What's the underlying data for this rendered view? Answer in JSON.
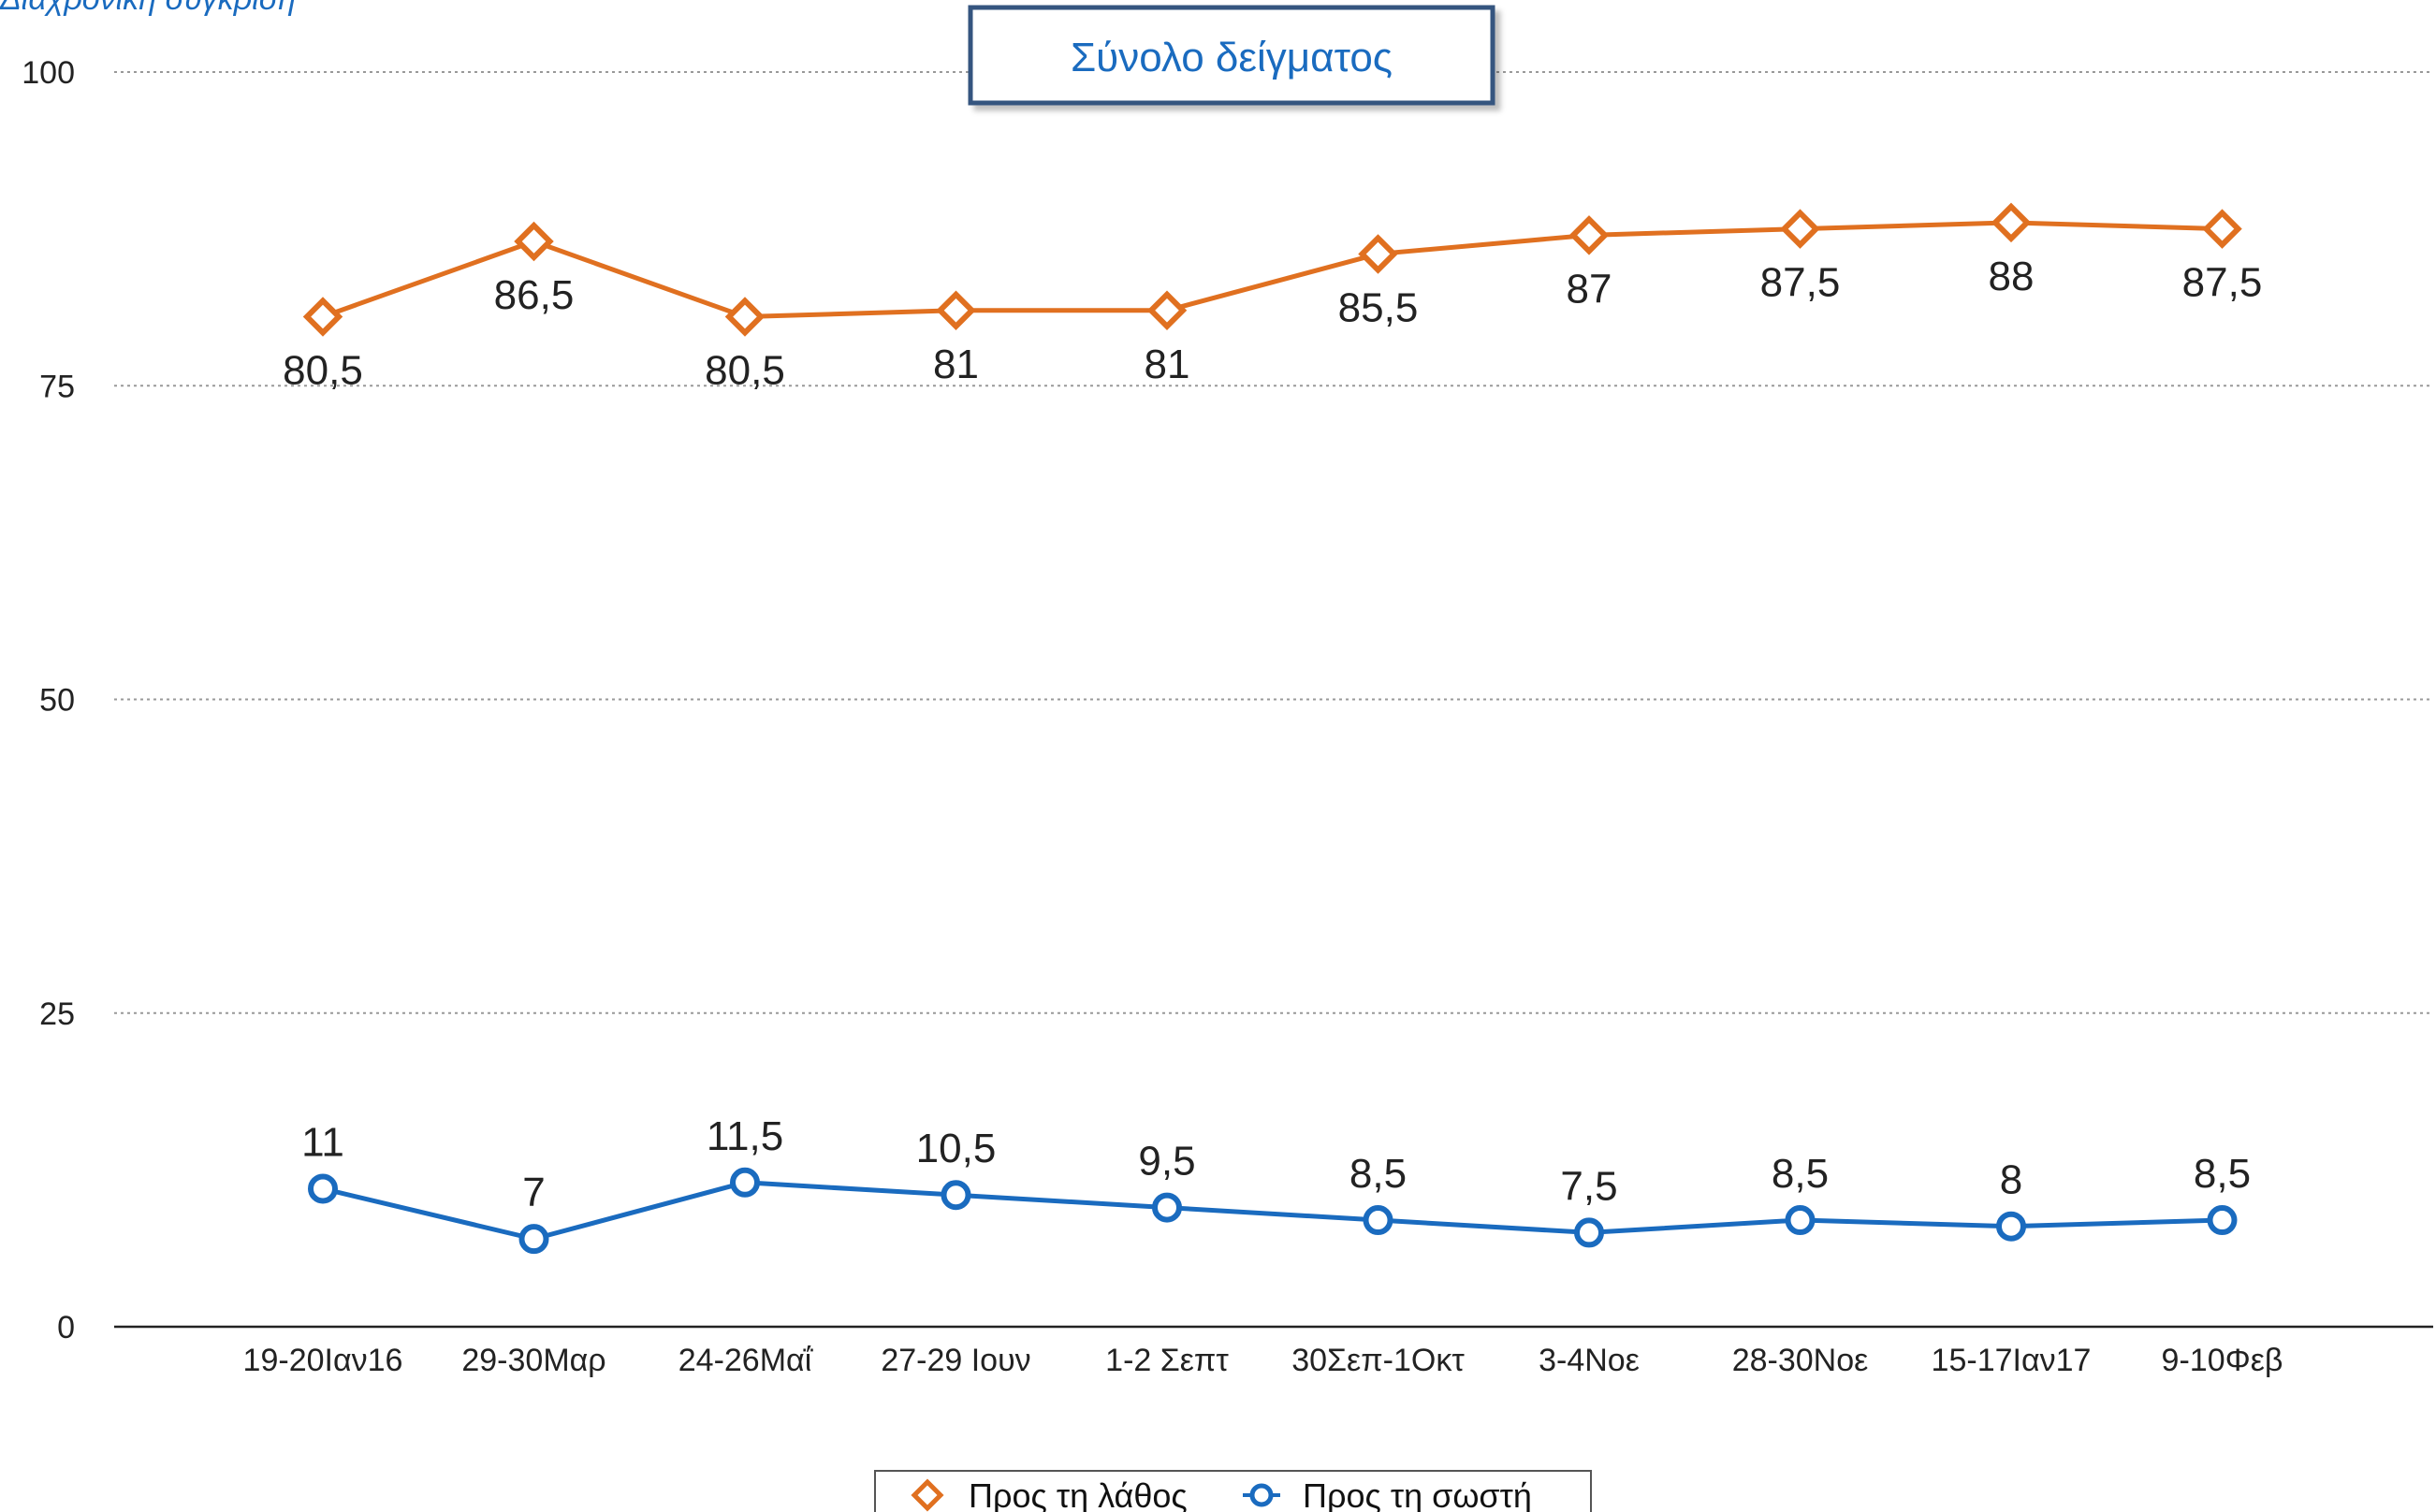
{
  "subtitle": "Διαχρονική σύγκριση",
  "chart_data": {
    "type": "line",
    "title": "Σύνολο δείγματος",
    "categories": [
      "19-20Ιαν16",
      "29-30Μαρ",
      "24-26Μαΐ",
      "27-29 Ιουν",
      "1-2 Σεπτ",
      "30Σεπ-1Οκτ",
      "3-4Νοε",
      "28-30Νοε",
      "15-17Ιαν17",
      "9-10Φεβ"
    ],
    "ylim": [
      0,
      100
    ],
    "yticks": [
      0,
      25,
      50,
      75,
      100
    ],
    "grid": true,
    "legend_position": "bottom",
    "series": [
      {
        "name": "Προς τη λάθος",
        "values": [
          80.5,
          86.5,
          80.5,
          81,
          81,
          85.5,
          87,
          87.5,
          88,
          87.5
        ],
        "labels": [
          "80,5",
          "86,5",
          "80,5",
          "81",
          "81",
          "85,5",
          "87",
          "87,5",
          "88",
          "87,5"
        ],
        "color": "#e07020",
        "marker": "diamond"
      },
      {
        "name": "Προς τη σωστή",
        "values": [
          11,
          7,
          11.5,
          10.5,
          9.5,
          8.5,
          7.5,
          8.5,
          8,
          8.5
        ],
        "labels": [
          "11",
          "7",
          "11,5",
          "10,5",
          "9,5",
          "8,5",
          "7,5",
          "8,5",
          "8",
          "8,5"
        ],
        "color": "#1a6bbf",
        "marker": "circle"
      }
    ]
  },
  "colors": {
    "title_border": "#34557f",
    "subtitle": "#1a6bbf",
    "grid": "#999999"
  }
}
